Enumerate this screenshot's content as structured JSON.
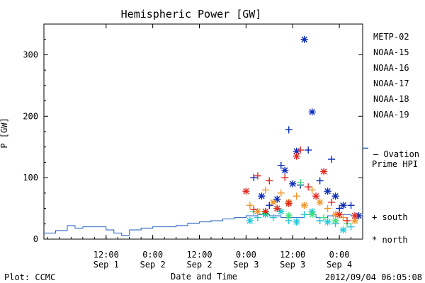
{
  "chart_data": {
    "type": "scatter",
    "title": "Hemispheric Power [GW]",
    "xlabel": "Date and Time",
    "ylabel": "P [GW]",
    "xlim": [
      "2012-08-31T20:00",
      "2012-09-04T06:00"
    ],
    "ylim": [
      0,
      350
    ],
    "y_ticks": [
      0,
      100,
      200,
      300
    ],
    "x_ticks": [
      {
        "time": "2012-09-01T12:00",
        "line1": "12:00",
        "line2": "Sep 1"
      },
      {
        "time": "2012-09-02T00:00",
        "line1": "0:00",
        "line2": "Sep 2"
      },
      {
        "time": "2012-09-02T12:00",
        "line1": "12:00",
        "line2": "Sep 2"
      },
      {
        "time": "2012-09-03T00:00",
        "line1": "0:00",
        "line2": "Sep 3"
      },
      {
        "time": "2012-09-03T12:00",
        "line1": "12:00",
        "line2": "Sep 3"
      },
      {
        "time": "2012-09-04T00:00",
        "line1": "0:00",
        "line2": "Sep 4"
      }
    ],
    "ovation": {
      "color": "#1f5fbf",
      "times": [
        "2012-08-31T20:00",
        "2012-08-31T23:00",
        "2012-09-01T02:00",
        "2012-09-01T04:00",
        "2012-09-01T06:00",
        "2012-09-01T09:00",
        "2012-09-01T12:00",
        "2012-09-01T14:00",
        "2012-09-01T16:00",
        "2012-09-01T18:00",
        "2012-09-01T21:00",
        "2012-09-02T00:00",
        "2012-09-02T03:00",
        "2012-09-02T06:00",
        "2012-09-02T09:00",
        "2012-09-02T12:00",
        "2012-09-02T15:00",
        "2012-09-02T18:00",
        "2012-09-02T21:00",
        "2012-09-03T00:00",
        "2012-09-03T03:00",
        "2012-09-03T06:00",
        "2012-09-03T09:00",
        "2012-09-03T12:00",
        "2012-09-03T15:00",
        "2012-09-03T18:00",
        "2012-09-03T21:00",
        "2012-09-04T00:00",
        "2012-09-04T03:00",
        "2012-09-04T06:00"
      ],
      "values": [
        10,
        14,
        22,
        18,
        20,
        20,
        15,
        10,
        6,
        15,
        18,
        20,
        20,
        22,
        26,
        28,
        30,
        33,
        35,
        38,
        40,
        38,
        35,
        35,
        40,
        35,
        38,
        40,
        38,
        40
      ]
    },
    "series": [
      {
        "name": "METP-02",
        "color": "#000000",
        "points": []
      },
      {
        "name": "NOAA-15",
        "color": "#0a2ab8",
        "points": [
          {
            "t": "2012-09-03T02:00",
            "v": 100,
            "m": "south"
          },
          {
            "t": "2012-09-03T04:00",
            "v": 70,
            "m": "north"
          },
          {
            "t": "2012-09-03T06:00",
            "v": 55,
            "m": "south"
          },
          {
            "t": "2012-09-03T08:00",
            "v": 65,
            "m": "north"
          },
          {
            "t": "2012-09-03T09:00",
            "v": 120,
            "m": "south"
          },
          {
            "t": "2012-09-03T10:00",
            "v": 112,
            "m": "north"
          },
          {
            "t": "2012-09-03T11:00",
            "v": 178,
            "m": "south"
          },
          {
            "t": "2012-09-03T12:00",
            "v": 90,
            "m": "north"
          },
          {
            "t": "2012-09-03T13:00",
            "v": 143,
            "m": "north"
          },
          {
            "t": "2012-09-03T14:00",
            "v": 88,
            "m": "south"
          },
          {
            "t": "2012-09-03T15:00",
            "v": 325,
            "m": "north"
          },
          {
            "t": "2012-09-03T16:00",
            "v": 145,
            "m": "south"
          },
          {
            "t": "2012-09-03T17:00",
            "v": 207,
            "m": "north"
          },
          {
            "t": "2012-09-03T19:00",
            "v": 95,
            "m": "south"
          },
          {
            "t": "2012-09-03T21:00",
            "v": 78,
            "m": "north"
          },
          {
            "t": "2012-09-03T22:00",
            "v": 130,
            "m": "south"
          },
          {
            "t": "2012-09-03T23:00",
            "v": 70,
            "m": "north"
          },
          {
            "t": "2012-09-04T00:00",
            "v": 50,
            "m": "south"
          },
          {
            "t": "2012-09-04T01:00",
            "v": 55,
            "m": "north"
          },
          {
            "t": "2012-09-04T03:00",
            "v": 55,
            "m": "south"
          },
          {
            "t": "2012-09-04T05:00",
            "v": 38,
            "m": "north"
          }
        ]
      },
      {
        "name": "NOAA-16",
        "color": "#1fc8d8",
        "points": [
          {
            "t": "2012-09-03T01:00",
            "v": 30,
            "m": "north"
          },
          {
            "t": "2012-09-03T03:00",
            "v": 35,
            "m": "south"
          },
          {
            "t": "2012-09-03T05:00",
            "v": 40,
            "m": "north"
          },
          {
            "t": "2012-09-03T07:00",
            "v": 35,
            "m": "south"
          },
          {
            "t": "2012-09-03T09:00",
            "v": 45,
            "m": "north"
          },
          {
            "t": "2012-09-03T11:00",
            "v": 30,
            "m": "south"
          },
          {
            "t": "2012-09-03T13:00",
            "v": 28,
            "m": "north"
          },
          {
            "t": "2012-09-03T15:00",
            "v": 40,
            "m": "south"
          },
          {
            "t": "2012-09-03T17:00",
            "v": 45,
            "m": "north"
          },
          {
            "t": "2012-09-03T19:00",
            "v": 30,
            "m": "south"
          },
          {
            "t": "2012-09-03T21:00",
            "v": 28,
            "m": "north"
          },
          {
            "t": "2012-09-03T23:00",
            "v": 25,
            "m": "south"
          },
          {
            "t": "2012-09-04T01:00",
            "v": 15,
            "m": "north"
          },
          {
            "t": "2012-09-04T03:00",
            "v": 20,
            "m": "south"
          }
        ]
      },
      {
        "name": "NOAA-17",
        "color": "#3ee07a",
        "points": [
          {
            "t": "2012-09-03T02:00",
            "v": 45,
            "m": "south"
          },
          {
            "t": "2012-09-03T05:00",
            "v": 42,
            "m": "north"
          },
          {
            "t": "2012-09-03T08:00",
            "v": 50,
            "m": "south"
          },
          {
            "t": "2012-09-03T11:00",
            "v": 38,
            "m": "north"
          },
          {
            "t": "2012-09-03T14:00",
            "v": 92,
            "m": "south"
          },
          {
            "t": "2012-09-03T17:00",
            "v": 40,
            "m": "north"
          },
          {
            "t": "2012-09-03T20:00",
            "v": 35,
            "m": "south"
          },
          {
            "t": "2012-09-03T23:00",
            "v": 30,
            "m": "north"
          },
          {
            "t": "2012-09-04T02:00",
            "v": 25,
            "m": "south"
          }
        ]
      },
      {
        "name": "NOAA-18",
        "color": "#f0962a",
        "points": [
          {
            "t": "2012-09-03T01:00",
            "v": 55,
            "m": "south"
          },
          {
            "t": "2012-09-03T03:00",
            "v": 45,
            "m": "north"
          },
          {
            "t": "2012-09-03T05:00",
            "v": 80,
            "m": "south"
          },
          {
            "t": "2012-09-03T07:00",
            "v": 60,
            "m": "north"
          },
          {
            "t": "2012-09-03T09:00",
            "v": 75,
            "m": "south"
          },
          {
            "t": "2012-09-03T11:00",
            "v": 60,
            "m": "north"
          },
          {
            "t": "2012-09-03T13:00",
            "v": 70,
            "m": "south"
          },
          {
            "t": "2012-09-03T15:00",
            "v": 55,
            "m": "north"
          },
          {
            "t": "2012-09-03T17:00",
            "v": 80,
            "m": "south"
          },
          {
            "t": "2012-09-03T19:00",
            "v": 60,
            "m": "north"
          },
          {
            "t": "2012-09-03T21:00",
            "v": 50,
            "m": "south"
          },
          {
            "t": "2012-09-03T23:00",
            "v": 40,
            "m": "north"
          },
          {
            "t": "2012-09-04T01:00",
            "v": 35,
            "m": "south"
          },
          {
            "t": "2012-09-04T04:00",
            "v": 30,
            "m": "north"
          }
        ]
      },
      {
        "name": "NOAA-19",
        "color": "#e0281e",
        "points": [
          {
            "t": "2012-09-03T00:00",
            "v": 78,
            "m": "north"
          },
          {
            "t": "2012-09-03T02:00",
            "v": 48,
            "m": "south"
          },
          {
            "t": "2012-09-03T03:00",
            "v": 103,
            "m": "south"
          },
          {
            "t": "2012-09-03T05:00",
            "v": 45,
            "m": "north"
          },
          {
            "t": "2012-09-03T06:00",
            "v": 95,
            "m": "south"
          },
          {
            "t": "2012-09-03T08:00",
            "v": 50,
            "m": "north"
          },
          {
            "t": "2012-09-03T10:00",
            "v": 100,
            "m": "south"
          },
          {
            "t": "2012-09-03T11:00",
            "v": 58,
            "m": "north"
          },
          {
            "t": "2012-09-03T13:00",
            "v": 135,
            "m": "north"
          },
          {
            "t": "2012-09-03T14:00",
            "v": 145,
            "m": "south"
          },
          {
            "t": "2012-09-03T16:00",
            "v": 85,
            "m": "south"
          },
          {
            "t": "2012-09-03T18:00",
            "v": 70,
            "m": "north"
          },
          {
            "t": "2012-09-03T20:00",
            "v": 110,
            "m": "north"
          },
          {
            "t": "2012-09-03T22:00",
            "v": 60,
            "m": "south"
          },
          {
            "t": "2012-09-04T00:00",
            "v": 40,
            "m": "north"
          },
          {
            "t": "2012-09-04T02:00",
            "v": 30,
            "m": "south"
          },
          {
            "t": "2012-09-04T04:00",
            "v": 38,
            "m": "north"
          }
        ]
      }
    ],
    "legend": {
      "ovation_line1": "– Ovation",
      "ovation_line2": "Prime HPI",
      "south": "+ south",
      "north": "* north"
    }
  },
  "footer": {
    "left": "Plot: CCMC",
    "right": "2012/09/04 06:05:08"
  }
}
